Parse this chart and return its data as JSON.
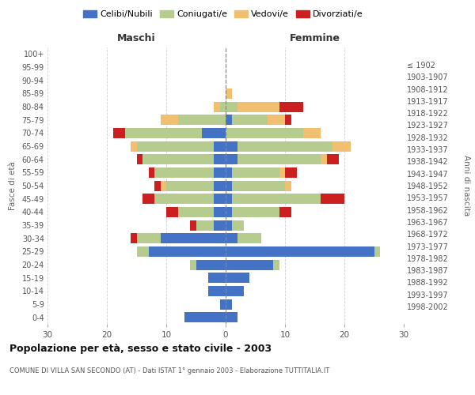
{
  "age_groups": [
    "0-4",
    "5-9",
    "10-14",
    "15-19",
    "20-24",
    "25-29",
    "30-34",
    "35-39",
    "40-44",
    "45-49",
    "50-54",
    "55-59",
    "60-64",
    "65-69",
    "70-74",
    "75-79",
    "80-84",
    "85-89",
    "90-94",
    "95-99",
    "100+"
  ],
  "birth_years": [
    "1998-2002",
    "1993-1997",
    "1988-1992",
    "1983-1987",
    "1978-1982",
    "1973-1977",
    "1968-1972",
    "1963-1967",
    "1958-1962",
    "1953-1957",
    "1948-1952",
    "1943-1947",
    "1938-1942",
    "1933-1937",
    "1928-1932",
    "1923-1927",
    "1918-1922",
    "1913-1917",
    "1908-1912",
    "1903-1907",
    "≤ 1902"
  ],
  "male": {
    "celibi": [
      7,
      1,
      3,
      3,
      5,
      13,
      11,
      2,
      2,
      2,
      2,
      2,
      2,
      2,
      4,
      0,
      0,
      0,
      0,
      0,
      0
    ],
    "coniugati": [
      0,
      0,
      0,
      0,
      1,
      2,
      4,
      3,
      6,
      10,
      8,
      10,
      12,
      13,
      13,
      8,
      1,
      0,
      0,
      0,
      0
    ],
    "vedovi": [
      0,
      0,
      0,
      0,
      0,
      0,
      0,
      0,
      0,
      0,
      1,
      0,
      0,
      1,
      0,
      3,
      1,
      0,
      0,
      0,
      0
    ],
    "divorziati": [
      0,
      0,
      0,
      0,
      0,
      0,
      1,
      1,
      2,
      2,
      1,
      1,
      1,
      0,
      2,
      0,
      0,
      0,
      0,
      0,
      0
    ]
  },
  "female": {
    "nubili": [
      2,
      1,
      3,
      4,
      8,
      25,
      2,
      1,
      1,
      1,
      1,
      1,
      2,
      2,
      0,
      1,
      0,
      0,
      0,
      0,
      0
    ],
    "coniugate": [
      0,
      0,
      0,
      0,
      1,
      1,
      4,
      2,
      8,
      15,
      9,
      8,
      14,
      16,
      13,
      6,
      2,
      0,
      0,
      0,
      0
    ],
    "vedove": [
      0,
      0,
      0,
      0,
      0,
      0,
      0,
      0,
      0,
      0,
      1,
      1,
      1,
      3,
      3,
      3,
      7,
      1,
      0,
      0,
      0
    ],
    "divorziate": [
      0,
      0,
      0,
      0,
      0,
      0,
      0,
      0,
      2,
      4,
      0,
      2,
      2,
      0,
      0,
      1,
      4,
      0,
      0,
      0,
      0
    ]
  },
  "colors": {
    "celibi_nubili": "#4472c4",
    "coniugati": "#b5cc8e",
    "vedovi": "#f0c070",
    "divorziati": "#cc2020"
  },
  "xlim": 30,
  "title": "Popolazione per età, sesso e stato civile - 2003",
  "subtitle": "COMUNE DI VILLA SAN SECONDO (AT) - Dati ISTAT 1° gennaio 2003 - Elaborazione TUTTITALIA.IT",
  "ylabel_left": "Fasce di età",
  "ylabel_right": "Anni di nascita",
  "xlabel_left": "Maschi",
  "xlabel_right": "Femmine",
  "legend_labels": [
    "Celibi/Nubili",
    "Coniugati/e",
    "Vedovi/e",
    "Divorziati/e"
  ],
  "background_color": "#ffffff",
  "grid_color": "#cccccc"
}
